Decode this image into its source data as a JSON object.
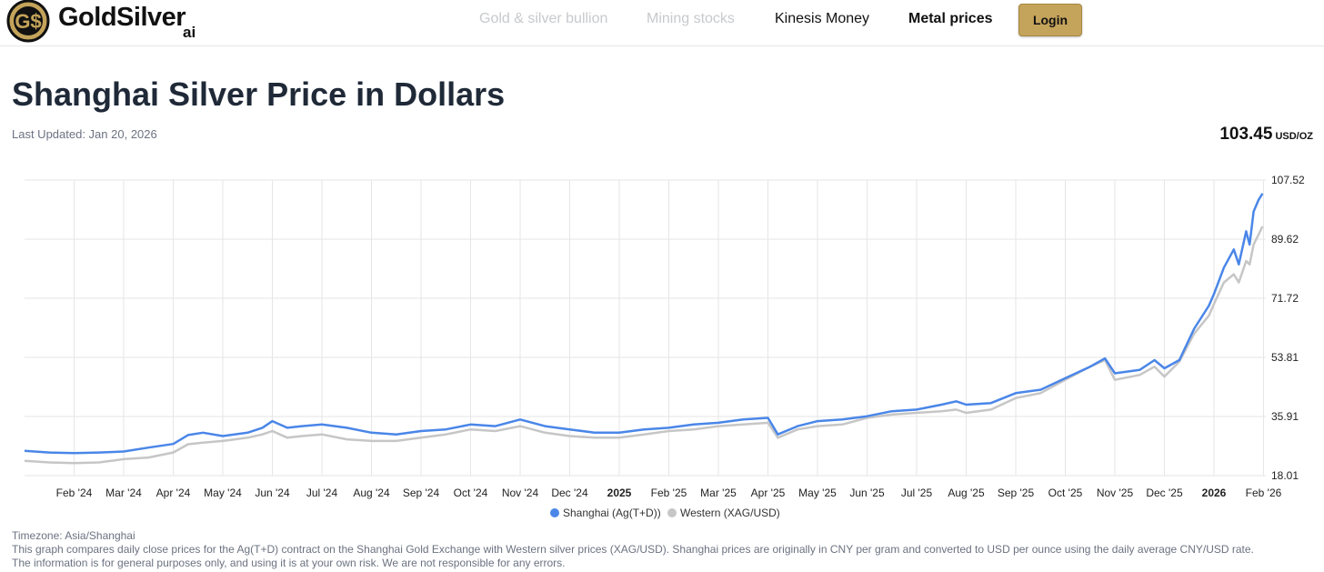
{
  "header": {
    "logo_text": "GoldSilver",
    "logo_sub": "ai",
    "nav": [
      "Gold & silver bullion",
      "Mining stocks",
      "Kinesis Money",
      "Metal prices"
    ],
    "login_label": "Login"
  },
  "page": {
    "title": "Shanghai Silver Price in Dollars",
    "updated": "Last Updated: Jan 20, 2026",
    "price": "103.45",
    "price_unit": "USD/OZ"
  },
  "footer": {
    "timezone": "Timezone: Asia/Shanghai",
    "line1": "This graph compares daily close prices for the Ag(T+D) contract on the Shanghai Gold Exchange with Western silver prices (XAG/USD). Shanghai prices are originally in CNY per gram and converted to USD per ounce using the daily average CNY/USD rate.",
    "line2": "The information is for general purposes only, and using it is at your own risk. We are not responsible for any errors."
  },
  "colors": {
    "accent": "#c4a35a",
    "shanghai": "#4a86e8",
    "western": "#c6c6c6"
  },
  "chart_data": {
    "type": "line",
    "grid": true,
    "legend": "bottom",
    "ylim": [
      18.01,
      107.52
    ],
    "y_ticks": [
      "107.52",
      "89.62",
      "71.72",
      "53.81",
      "35.91",
      "18.01"
    ],
    "x_ticks": [
      {
        "label": "Feb '24",
        "x": 1,
        "bold": false
      },
      {
        "label": "Mar '24",
        "x": 2,
        "bold": false
      },
      {
        "label": "Apr '24",
        "x": 3,
        "bold": false
      },
      {
        "label": "May '24",
        "x": 4,
        "bold": false
      },
      {
        "label": "Jun '24",
        "x": 5,
        "bold": false
      },
      {
        "label": "Jul '24",
        "x": 6,
        "bold": false
      },
      {
        "label": "Aug '24",
        "x": 7,
        "bold": false
      },
      {
        "label": "Sep '24",
        "x": 8,
        "bold": false
      },
      {
        "label": "Oct '24",
        "x": 9,
        "bold": false
      },
      {
        "label": "Nov '24",
        "x": 10,
        "bold": false
      },
      {
        "label": "Dec '24",
        "x": 11,
        "bold": false
      },
      {
        "label": "2025",
        "x": 12,
        "bold": true
      },
      {
        "label": "Feb '25",
        "x": 13,
        "bold": false
      },
      {
        "label": "Mar '25",
        "x": 14,
        "bold": false
      },
      {
        "label": "Apr '25",
        "x": 15,
        "bold": false
      },
      {
        "label": "May '25",
        "x": 16,
        "bold": false
      },
      {
        "label": "Jun '25",
        "x": 17,
        "bold": false
      },
      {
        "label": "Jul '25",
        "x": 18,
        "bold": false
      },
      {
        "label": "Aug '25",
        "x": 19,
        "bold": false
      },
      {
        "label": "Sep '25",
        "x": 20,
        "bold": false
      },
      {
        "label": "Oct '25",
        "x": 21,
        "bold": false
      },
      {
        "label": "Nov '25",
        "x": 22,
        "bold": false
      },
      {
        "label": "Dec '25",
        "x": 23,
        "bold": false
      },
      {
        "label": "2026",
        "x": 24,
        "bold": true
      },
      {
        "label": "Feb '26",
        "x": 25,
        "bold": false
      }
    ],
    "series": [
      {
        "name": "Shanghai (Ag(T+D))",
        "color": "#4a86e8",
        "points": [
          [
            0,
            25.5
          ],
          [
            0.5,
            25.0
          ],
          [
            1,
            24.8
          ],
          [
            1.5,
            25.0
          ],
          [
            2,
            25.3
          ],
          [
            2.5,
            26.5
          ],
          [
            3,
            27.6
          ],
          [
            3.3,
            30.3
          ],
          [
            3.6,
            31.0
          ],
          [
            4,
            30.0
          ],
          [
            4.5,
            31.0
          ],
          [
            4.8,
            32.5
          ],
          [
            5,
            34.5
          ],
          [
            5.3,
            32.5
          ],
          [
            5.6,
            33.0
          ],
          [
            6,
            33.5
          ],
          [
            6.5,
            32.5
          ],
          [
            7,
            31.0
          ],
          [
            7.5,
            30.5
          ],
          [
            8,
            31.5
          ],
          [
            8.5,
            32.0
          ],
          [
            9,
            33.5
          ],
          [
            9.5,
            33.0
          ],
          [
            10,
            35.0
          ],
          [
            10.5,
            33.0
          ],
          [
            11,
            32.0
          ],
          [
            11.5,
            31.0
          ],
          [
            12,
            31.0
          ],
          [
            12.5,
            32.0
          ],
          [
            13,
            32.5
          ],
          [
            13.5,
            33.5
          ],
          [
            14,
            34.0
          ],
          [
            14.5,
            35.0
          ],
          [
            15,
            35.5
          ],
          [
            15.2,
            30.5
          ],
          [
            15.6,
            33.0
          ],
          [
            16,
            34.5
          ],
          [
            16.5,
            35.0
          ],
          [
            17,
            36.0
          ],
          [
            17.5,
            37.5
          ],
          [
            18,
            38.0
          ],
          [
            18.5,
            39.5
          ],
          [
            18.8,
            40.5
          ],
          [
            19,
            39.5
          ],
          [
            19.5,
            40.0
          ],
          [
            20,
            43.0
          ],
          [
            20.5,
            44.0
          ],
          [
            21,
            47.5
          ],
          [
            21.5,
            51.0
          ],
          [
            21.8,
            53.5
          ],
          [
            22,
            49.0
          ],
          [
            22.5,
            50.0
          ],
          [
            22.8,
            53.0
          ],
          [
            23,
            50.5
          ],
          [
            23.3,
            53.0
          ],
          [
            23.6,
            62.5
          ],
          [
            23.9,
            69.5
          ],
          [
            24,
            73.0
          ],
          [
            24.2,
            81.0
          ],
          [
            24.4,
            86.5
          ],
          [
            24.5,
            82.0
          ],
          [
            24.65,
            92.0
          ],
          [
            24.72,
            88.0
          ],
          [
            24.8,
            98.0
          ],
          [
            24.9,
            101.5
          ],
          [
            24.98,
            103.45
          ]
        ]
      },
      {
        "name": "Western (XAG/USD)",
        "color": "#c6c6c6",
        "points": [
          [
            0,
            22.5
          ],
          [
            0.5,
            22.0
          ],
          [
            1,
            21.8
          ],
          [
            1.5,
            22.0
          ],
          [
            2,
            23.0
          ],
          [
            2.5,
            23.5
          ],
          [
            3,
            25.0
          ],
          [
            3.3,
            27.5
          ],
          [
            3.6,
            28.0
          ],
          [
            4,
            28.5
          ],
          [
            4.5,
            29.5
          ],
          [
            4.8,
            30.5
          ],
          [
            5,
            31.5
          ],
          [
            5.3,
            29.5
          ],
          [
            5.6,
            30.0
          ],
          [
            6,
            30.5
          ],
          [
            6.5,
            29.0
          ],
          [
            7,
            28.5
          ],
          [
            7.5,
            28.5
          ],
          [
            8,
            29.5
          ],
          [
            8.5,
            30.5
          ],
          [
            9,
            32.0
          ],
          [
            9.5,
            31.5
          ],
          [
            10,
            33.0
          ],
          [
            10.5,
            31.0
          ],
          [
            11,
            30.0
          ],
          [
            11.5,
            29.5
          ],
          [
            12,
            29.5
          ],
          [
            12.5,
            30.5
          ],
          [
            13,
            31.5
          ],
          [
            13.5,
            32.0
          ],
          [
            14,
            33.0
          ],
          [
            14.5,
            33.5
          ],
          [
            15,
            34.0
          ],
          [
            15.2,
            29.5
          ],
          [
            15.6,
            32.0
          ],
          [
            16,
            33.0
          ],
          [
            16.5,
            33.5
          ],
          [
            17,
            35.5
          ],
          [
            17.5,
            36.5
          ],
          [
            18,
            37.0
          ],
          [
            18.5,
            37.5
          ],
          [
            18.8,
            38.0
          ],
          [
            19,
            37.0
          ],
          [
            19.5,
            38.0
          ],
          [
            20,
            41.5
          ],
          [
            20.5,
            43.0
          ],
          [
            21,
            47.0
          ],
          [
            21.5,
            51.0
          ],
          [
            21.8,
            53.0
          ],
          [
            22,
            47.0
          ],
          [
            22.5,
            48.5
          ],
          [
            22.8,
            51.0
          ],
          [
            23,
            48.0
          ],
          [
            23.3,
            52.5
          ],
          [
            23.6,
            61.0
          ],
          [
            23.9,
            66.5
          ],
          [
            24,
            70.0
          ],
          [
            24.2,
            76.5
          ],
          [
            24.4,
            79.0
          ],
          [
            24.5,
            76.5
          ],
          [
            24.65,
            83.0
          ],
          [
            24.72,
            82.0
          ],
          [
            24.8,
            88.0
          ],
          [
            24.9,
            91.0
          ],
          [
            24.98,
            93.5
          ]
        ]
      }
    ]
  }
}
